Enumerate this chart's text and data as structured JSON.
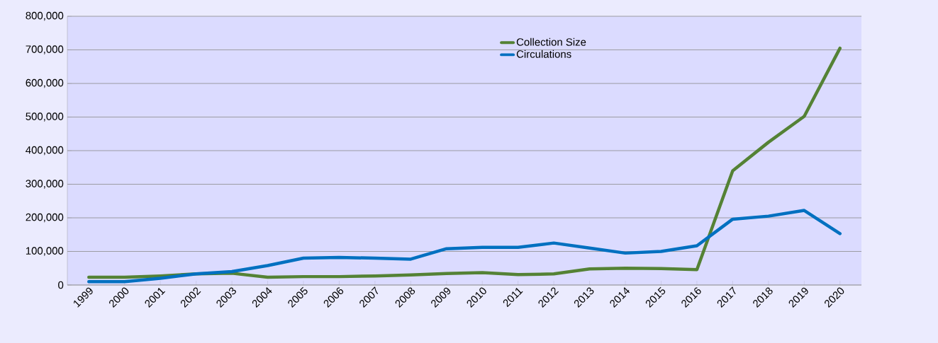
{
  "chart_data": {
    "type": "line",
    "categories": [
      "1999",
      "2000",
      "2001",
      "2002",
      "2003",
      "2004",
      "2005",
      "2006",
      "2007",
      "2008",
      "2009",
      "2010",
      "2011",
      "2012",
      "2013",
      "2014",
      "2015",
      "2016",
      "2017",
      "2018",
      "2019",
      "2020"
    ],
    "series": [
      {
        "name": "Collection Size",
        "color": "#548235",
        "values": [
          23000,
          23000,
          27000,
          33000,
          35000,
          23000,
          25000,
          25000,
          27000,
          30000,
          34000,
          37000,
          31000,
          33000,
          48000,
          50000,
          49000,
          46000,
          340000,
          425000,
          502000,
          705000
        ]
      },
      {
        "name": "Circulations",
        "color": "#0070c0",
        "values": [
          10000,
          10000,
          20000,
          33000,
          40000,
          58000,
          80000,
          82000,
          80000,
          77000,
          108000,
          112000,
          112000,
          125000,
          110000,
          95000,
          100000,
          117000,
          196000,
          205000,
          222000,
          153000
        ]
      }
    ],
    "ylim": [
      0,
      800000
    ],
    "yticks": [
      {
        "value": 0,
        "label": "0"
      },
      {
        "value": 100000,
        "label": "100,000"
      },
      {
        "value": 200000,
        "label": "200,000"
      },
      {
        "value": 300000,
        "label": "300,000"
      },
      {
        "value": 400000,
        "label": "400,000"
      },
      {
        "value": 500000,
        "label": "500,000"
      },
      {
        "value": 600000,
        "label": "600,000"
      },
      {
        "value": 700000,
        "label": "700,000"
      },
      {
        "value": 800000,
        "label": "800,000"
      }
    ],
    "grid": "y",
    "legend": "top",
    "marker": "none",
    "line_style": "solid"
  }
}
